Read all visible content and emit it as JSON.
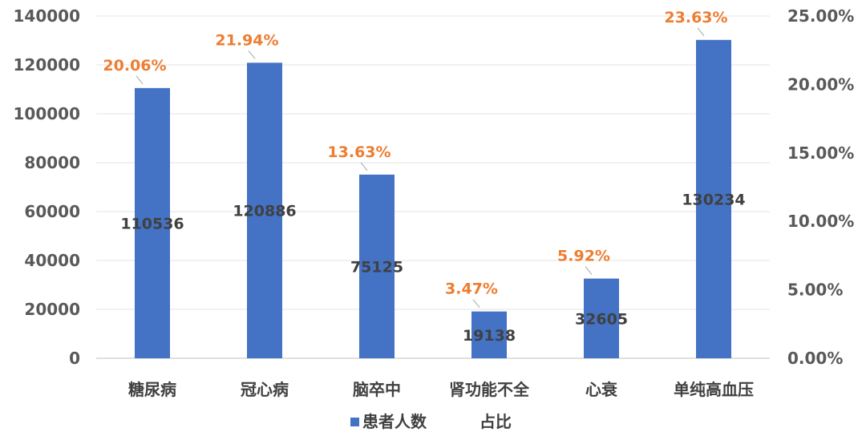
{
  "chart_data": {
    "type": "bar",
    "categories": [
      "糖尿病",
      "冠心病",
      "脑卒中",
      "肾功能不全",
      "心衰",
      "单纯高血压"
    ],
    "series": [
      {
        "name": "患者人数",
        "values": [
          110536,
          120886,
          75125,
          19138,
          32605,
          130234
        ],
        "color": "#4472C4"
      },
      {
        "name": "占比",
        "values": [
          20.06,
          21.94,
          13.63,
          3.47,
          5.92,
          23.63
        ],
        "color": "#ED7D31"
      }
    ],
    "value_labels": [
      "110536",
      "120886",
      "75125",
      "19138",
      "32605",
      "130234"
    ],
    "percent_labels": [
      "20.06%",
      "21.94%",
      "13.63%",
      "3.47%",
      "5.92%",
      "23.63%"
    ],
    "y_left": {
      "ylim": [
        0,
        140000
      ],
      "ticks": [
        "0",
        "20000",
        "40000",
        "60000",
        "80000",
        "100000",
        "120000",
        "140000"
      ]
    },
    "y_right": {
      "ylim": [
        0,
        25
      ],
      "ticks": [
        "0.00%",
        "5.00%",
        "10.00%",
        "15.00%",
        "20.00%",
        "25.00%"
      ]
    },
    "grid": true,
    "legend_position": "bottom",
    "legend": [
      "患者人数",
      "占比"
    ]
  }
}
